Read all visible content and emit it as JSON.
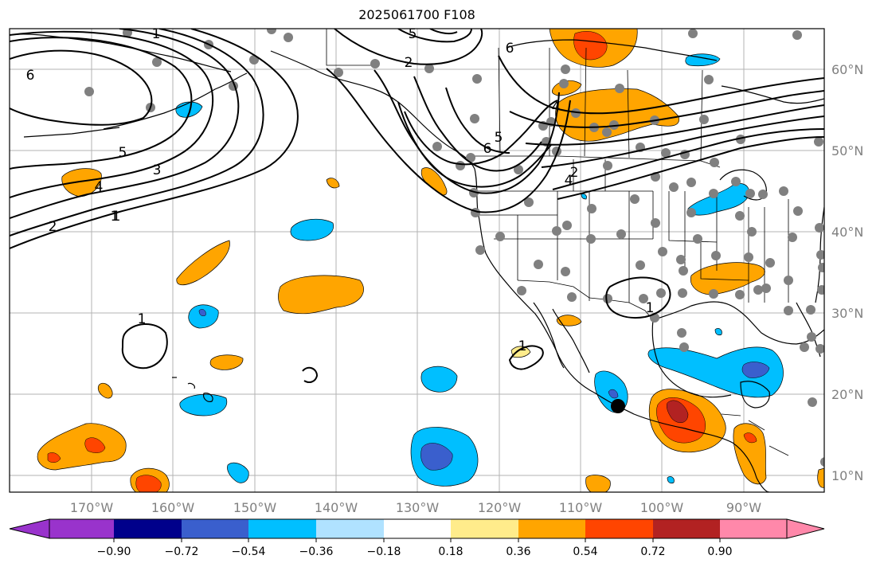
{
  "title": "2025061700 F108",
  "lat_labels": [
    "60°N",
    "50°N",
    "40°N",
    "30°N",
    "20°N",
    "10°N"
  ],
  "lon_labels": [
    "170°W",
    "160°W",
    "150°W",
    "140°W",
    "130°W",
    "120°W",
    "110°W",
    "100°W",
    "90°W"
  ],
  "colorbar": {
    "ticks": [
      "−0.90",
      "−0.72",
      "−0.54",
      "−0.36",
      "−0.18",
      "0.18",
      "0.36",
      "0.54",
      "0.72",
      "0.90"
    ],
    "colors": [
      "#9933cc",
      "#00008b",
      "#3a5fcd",
      "#00bfff",
      "#b0e2ff",
      "#ffffff",
      "#ffec8b",
      "#ffa500",
      "#ff4500",
      "#b22222",
      "#ff88aa"
    ]
  },
  "contour_labels": [
    "6",
    "1",
    "2",
    "5",
    "6",
    "4",
    "5",
    "3",
    "4",
    "1",
    "2",
    "6",
    "5",
    "4",
    "2",
    "1",
    "1",
    "1",
    "1"
  ],
  "colors": {
    "positive": "#ffa500",
    "negative": "#00bfff",
    "contour": "#000000",
    "station": "#808080"
  }
}
